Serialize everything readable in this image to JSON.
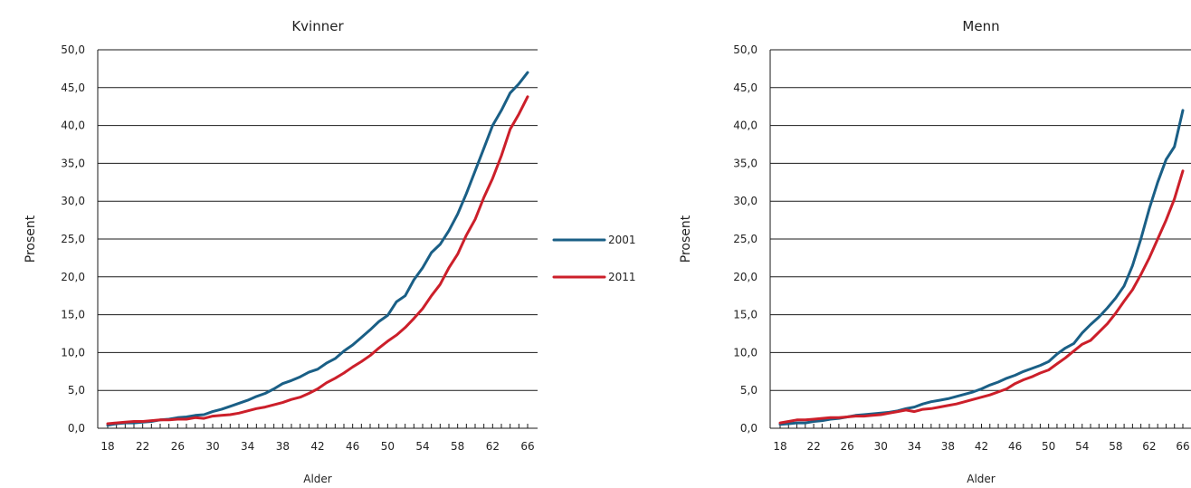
{
  "chart_data": [
    {
      "type": "line",
      "title": "Kvinner",
      "xlabel": "Alder",
      "ylabel": "Prosent",
      "ylim": [
        0,
        50
      ],
      "xlim": [
        18,
        66
      ],
      "y_ticks": [
        "0,0",
        "5,0",
        "10,0",
        "15,0",
        "20,0",
        "25,0",
        "30,0",
        "35,0",
        "40,0",
        "45,0",
        "50,0"
      ],
      "x_ticks": [
        "18",
        "22",
        "26",
        "30",
        "34",
        "38",
        "42",
        "46",
        "50",
        "54",
        "58",
        "62",
        "66"
      ],
      "grid": "horizontal",
      "legend": "right",
      "x": [
        18,
        19,
        20,
        21,
        22,
        23,
        24,
        25,
        26,
        27,
        28,
        29,
        30,
        31,
        32,
        33,
        34,
        35,
        36,
        37,
        38,
        39,
        40,
        41,
        42,
        43,
        44,
        45,
        46,
        47,
        48,
        49,
        50,
        51,
        52,
        53,
        54,
        55,
        56,
        57,
        58,
        59,
        60,
        61,
        62,
        63,
        64,
        65,
        66
      ],
      "series": [
        {
          "name": "2001",
          "color": "#1a5f86",
          "values": [
            0.4,
            0.6,
            0.7,
            0.7,
            0.8,
            0.9,
            1.1,
            1.2,
            1.4,
            1.5,
            1.7,
            1.8,
            2.2,
            2.5,
            2.9,
            3.3,
            3.7,
            4.2,
            4.6,
            5.2,
            5.9,
            6.3,
            6.8,
            7.4,
            7.8,
            8.6,
            9.2,
            10.2,
            11.0,
            12.0,
            13.0,
            14.1,
            14.9,
            16.7,
            17.5,
            19.6,
            21.2,
            23.2,
            24.3,
            26.1,
            28.3,
            31.0,
            34.0,
            37.0,
            40.0,
            42.0,
            44.3,
            45.5,
            47.0
          ]
        },
        {
          "name": "2011",
          "color": "#cc1f2a",
          "values": [
            0.6,
            0.7,
            0.8,
            0.9,
            0.9,
            1.0,
            1.1,
            1.1,
            1.2,
            1.2,
            1.4,
            1.3,
            1.6,
            1.7,
            1.8,
            2.0,
            2.3,
            2.6,
            2.8,
            3.1,
            3.4,
            3.8,
            4.1,
            4.6,
            5.2,
            6.0,
            6.6,
            7.3,
            8.1,
            8.8,
            9.6,
            10.6,
            11.5,
            12.3,
            13.3,
            14.5,
            15.8,
            17.5,
            19.0,
            21.2,
            23.0,
            25.5,
            27.6,
            30.5,
            33.0,
            36.0,
            39.5,
            41.5,
            43.8
          ]
        }
      ]
    },
    {
      "type": "line",
      "title": "Menn",
      "xlabel": "Alder",
      "ylabel": "Prosent",
      "ylim": [
        0,
        50
      ],
      "xlim": [
        18,
        66
      ],
      "y_ticks": [
        "0,0",
        "5,0",
        "10,0",
        "15,0",
        "20,0",
        "25,0",
        "30,0",
        "35,0",
        "40,0",
        "45,0",
        "50,0"
      ],
      "x_ticks": [
        "18",
        "22",
        "26",
        "30",
        "34",
        "38",
        "42",
        "46",
        "50",
        "54",
        "58",
        "62",
        "66"
      ],
      "grid": "horizontal",
      "legend": "none",
      "x": [
        18,
        19,
        20,
        21,
        22,
        23,
        24,
        25,
        26,
        27,
        28,
        29,
        30,
        31,
        32,
        33,
        34,
        35,
        36,
        37,
        38,
        39,
        40,
        41,
        42,
        43,
        44,
        45,
        46,
        47,
        48,
        49,
        50,
        51,
        52,
        53,
        54,
        55,
        56,
        57,
        58,
        59,
        60,
        61,
        62,
        63,
        64,
        65,
        66
      ],
      "series": [
        {
          "name": "2001",
          "color": "#1a5f86",
          "values": [
            0.5,
            0.6,
            0.7,
            0.7,
            0.9,
            1.0,
            1.2,
            1.3,
            1.5,
            1.7,
            1.8,
            1.9,
            2.0,
            2.1,
            2.3,
            2.6,
            2.8,
            3.2,
            3.5,
            3.7,
            3.9,
            4.2,
            4.5,
            4.8,
            5.2,
            5.7,
            6.1,
            6.6,
            7.0,
            7.5,
            7.9,
            8.3,
            8.8,
            9.8,
            10.6,
            11.2,
            12.6,
            13.7,
            14.7,
            15.9,
            17.2,
            18.8,
            21.5,
            25.0,
            29.0,
            32.5,
            35.5,
            37.2,
            42.0
          ]
        },
        {
          "name": "2011",
          "color": "#cc1f2a",
          "values": [
            0.7,
            0.9,
            1.1,
            1.1,
            1.2,
            1.3,
            1.4,
            1.4,
            1.5,
            1.6,
            1.6,
            1.7,
            1.8,
            2.0,
            2.2,
            2.4,
            2.2,
            2.5,
            2.6,
            2.8,
            3.0,
            3.2,
            3.5,
            3.8,
            4.1,
            4.4,
            4.8,
            5.2,
            5.9,
            6.4,
            6.8,
            7.3,
            7.7,
            8.5,
            9.3,
            10.2,
            11.1,
            11.6,
            12.7,
            13.8,
            15.2,
            16.8,
            18.3,
            20.3,
            22.5,
            25.0,
            27.5,
            30.3,
            34.0
          ]
        }
      ]
    }
  ]
}
